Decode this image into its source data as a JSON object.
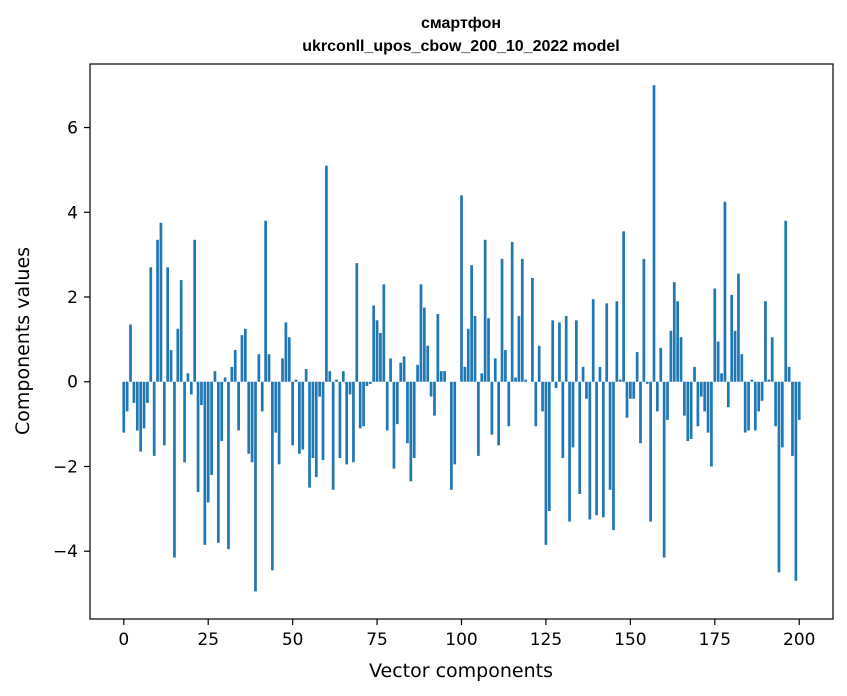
{
  "chart_data": {
    "type": "bar",
    "title_line1": "смартфон",
    "title_line2": "ukrconll_upos_cbow_200_10_2022 model",
    "xlabel": "Vector components",
    "ylabel": "Components values",
    "xlim": [
      -10,
      210
    ],
    "ylim": [
      -5.6,
      7.5
    ],
    "xticks": [
      0,
      25,
      50,
      75,
      100,
      125,
      150,
      175,
      200
    ],
    "yticks": [
      -4,
      -2,
      0,
      2,
      4,
      6
    ],
    "ytick_labels": [
      "−4",
      "−2",
      "0",
      "2",
      "4",
      "6"
    ],
    "bar_color": "#1f77b4",
    "grid": false,
    "values": [
      -1.2,
      -0.7,
      1.35,
      -0.5,
      -1.15,
      -1.65,
      -1.1,
      -0.5,
      2.7,
      -1.75,
      3.35,
      3.75,
      -1.5,
      2.7,
      0.75,
      -4.15,
      1.25,
      2.4,
      -1.9,
      0.2,
      -0.3,
      3.35,
      -2.6,
      -0.55,
      -3.85,
      -2.85,
      -2.2,
      0.25,
      -3.8,
      -1.4,
      0.1,
      -3.95,
      0.35,
      0.75,
      -1.15,
      1.1,
      1.25,
      -1.7,
      -1.9,
      -4.95,
      0.65,
      -0.7,
      3.8,
      0.65,
      -4.45,
      -1.2,
      -1.95,
      0.55,
      1.4,
      1.05,
      -1.5,
      0.05,
      -1.7,
      -1.6,
      0.3,
      -2.5,
      -1.8,
      -2.25,
      -0.35,
      -1.85,
      5.1,
      0.25,
      -2.55,
      0.05,
      -1.8,
      0.25,
      -1.95,
      -0.3,
      -1.9,
      2.8,
      -1.1,
      -1.05,
      -0.1,
      -0.05,
      1.8,
      1.45,
      1.15,
      2.3,
      -1.15,
      0.55,
      -2.05,
      -1.0,
      0.45,
      0.6,
      -1.45,
      -2.35,
      -1.8,
      0.4,
      2.3,
      1.75,
      0.85,
      -0.35,
      -0.8,
      1.6,
      0.25,
      0.25,
      0.0,
      -2.55,
      -1.95,
      0.0,
      4.4,
      0.35,
      1.25,
      2.75,
      1.55,
      -1.75,
      0.2,
      3.35,
      1.5,
      -1.25,
      0.55,
      -1.5,
      2.9,
      0.75,
      -1.05,
      3.3,
      0.1,
      1.55,
      2.9,
      0.05,
      0.0,
      2.45,
      -1.05,
      0.85,
      -0.7,
      -3.85,
      -3.05,
      1.45,
      -0.15,
      1.4,
      -1.8,
      1.55,
      -3.3,
      -1.55,
      1.45,
      -2.65,
      0.35,
      -0.4,
      -3.25,
      1.95,
      -3.15,
      0.35,
      -3.2,
      1.85,
      -2.55,
      -3.5,
      1.9,
      0.05,
      3.55,
      -0.85,
      -0.4,
      -0.4,
      0.7,
      -1.45,
      2.9,
      -0.05,
      -3.3,
      7.0,
      -0.7,
      0.8,
      -4.15,
      -0.9,
      1.2,
      2.35,
      1.9,
      1.05,
      -0.8,
      -1.4,
      -1.35,
      0.35,
      -1.05,
      -0.35,
      -0.7,
      -1.2,
      -2.0,
      2.2,
      0.95,
      0.2,
      4.25,
      -0.6,
      2.05,
      1.2,
      2.55,
      0.65,
      -1.2,
      -1.15,
      0.05,
      -1.15,
      -0.7,
      -0.45,
      1.9,
      0.05,
      1.05,
      -1.05,
      -4.5,
      -1.55,
      3.8,
      0.35,
      -1.75,
      -4.7,
      -0.9
    ]
  }
}
